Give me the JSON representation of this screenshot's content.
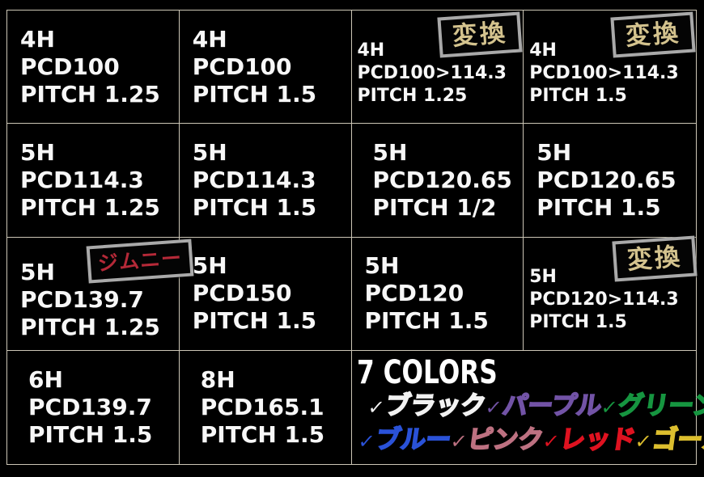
{
  "table": {
    "cells": [
      {
        "hole": "4H",
        "pcd": "PCD100",
        "pitch": "PITCH 1.25"
      },
      {
        "hole": "4H",
        "pcd": "PCD100",
        "pitch": "PITCH 1.5"
      },
      {
        "hole": "4H",
        "pcd": "PCD100>114.3",
        "pitch": "PITCH 1.25",
        "badge": "変換"
      },
      {
        "hole": "4H",
        "pcd": "PCD100>114.3",
        "pitch": "PITCH 1.5",
        "badge": "変換"
      },
      {
        "hole": "5H",
        "pcd": "PCD114.3",
        "pitch": "PITCH 1.25"
      },
      {
        "hole": "5H",
        "pcd": "PCD114.3",
        "pitch": "PITCH 1.5"
      },
      {
        "hole": "5H",
        "pcd": "PCD120.65",
        "pitch": "PITCH 1/2"
      },
      {
        "hole": "5H",
        "pcd": "PCD120.65",
        "pitch": "PITCH 1.5"
      },
      {
        "hole": "5H",
        "pcd": "PCD139.7",
        "pitch": "PITCH 1.25",
        "badge": "ジムニー"
      },
      {
        "hole": "5H",
        "pcd": "PCD150",
        "pitch": "PITCH 1.5"
      },
      {
        "hole": "5H",
        "pcd": "PCD120",
        "pitch": "PITCH 1.5"
      },
      {
        "hole": "5H",
        "pcd": "PCD120>114.3",
        "pitch": "PITCH 1.5",
        "badge": "変換"
      },
      {
        "hole": "6H",
        "pcd": "PCD139.7",
        "pitch": "PITCH 1.5"
      },
      {
        "hole": "8H",
        "pcd": "PCD165.1",
        "pitch": "PITCH 1.5"
      }
    ],
    "badge_text_color_gold": "#d4c38e",
    "badge_text_color_red": "#b52938",
    "badge_border_color": "#a9a9a9",
    "grid_line_color": "#ccc6b6"
  },
  "colors_section": {
    "title": "7 COLORS",
    "checkmark": "✓",
    "options": [
      {
        "label": "ブラック",
        "color": "#f2f2f2"
      },
      {
        "label": "パープル",
        "color": "#7253a6"
      },
      {
        "label": "グリーン",
        "color": "#169540"
      },
      {
        "label": "ブルー",
        "color": "#2a52d8"
      },
      {
        "label": "ピンク",
        "color": "#bd7181"
      },
      {
        "label": "レッド",
        "color": "#df1220"
      },
      {
        "label": "ゴールド",
        "color": "#dcbe2e"
      }
    ]
  }
}
